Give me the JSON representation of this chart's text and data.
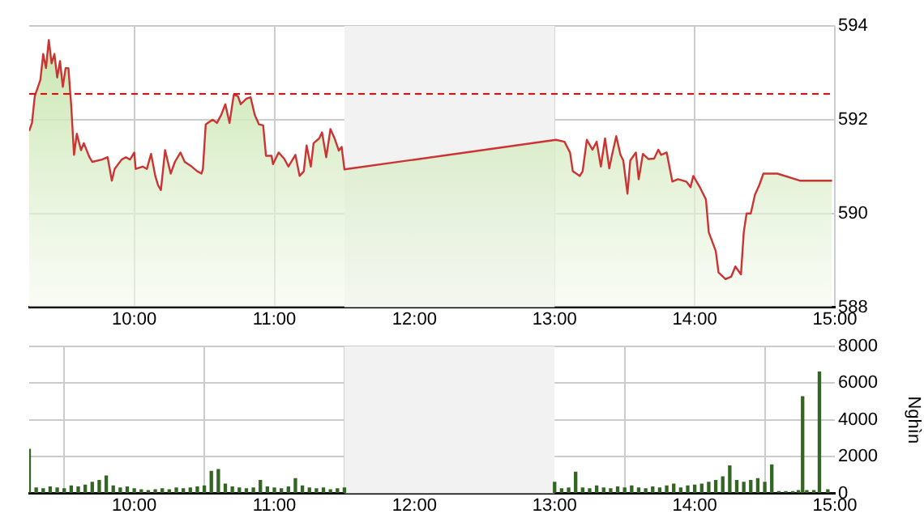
{
  "chart_data": [
    {
      "type": "area",
      "x": [
        9.25,
        9.27,
        9.29,
        9.33,
        9.35,
        9.37,
        9.39,
        9.41,
        9.43,
        9.45,
        9.47,
        9.49,
        9.51,
        9.53,
        9.55,
        9.57,
        9.59,
        9.62,
        9.64,
        9.68,
        9.7,
        9.77,
        9.81,
        9.84,
        9.86,
        9.91,
        9.94,
        9.97,
        10.0,
        10.01,
        10.06,
        10.09,
        10.12,
        10.15,
        10.17,
        10.19,
        10.22,
        10.26,
        10.29,
        10.33,
        10.36,
        10.41,
        10.45,
        10.48,
        10.49,
        10.51,
        10.56,
        10.59,
        10.62,
        10.65,
        10.68,
        10.71,
        10.74,
        10.76,
        10.8,
        10.83,
        10.86,
        10.89,
        10.92,
        10.94,
        10.98,
        10.99,
        11.03,
        11.07,
        11.1,
        11.15,
        11.18,
        11.21,
        11.23,
        11.26,
        11.28,
        11.32,
        11.34,
        11.37,
        11.4,
        11.43,
        11.46,
        11.48,
        11.5,
        13.01,
        13.07,
        13.11,
        13.13,
        13.18,
        13.2,
        13.23,
        13.27,
        13.3,
        13.33,
        13.36,
        13.39,
        13.41,
        13.44,
        13.47,
        13.49,
        13.52,
        13.54,
        13.58,
        13.6,
        13.63,
        13.67,
        13.71,
        13.74,
        13.76,
        13.8,
        13.84,
        13.88,
        13.94,
        13.97,
        13.99,
        14.04,
        14.08,
        14.1,
        14.15,
        14.17,
        14.22,
        14.26,
        14.29,
        14.33,
        14.35,
        14.37,
        14.4,
        14.43,
        14.46,
        14.49,
        14.59,
        14.75,
        14.98
      ],
      "series": [
        {
          "color": "#cc3333",
          "values": [
            591.76,
            591.93,
            592.5,
            592.85,
            593.4,
            593.1,
            593.7,
            593.2,
            593.4,
            592.9,
            593.25,
            592.7,
            593.1,
            593.1,
            592.3,
            591.25,
            591.7,
            591.35,
            591.5,
            591.2,
            591.1,
            591.15,
            591.2,
            590.7,
            590.95,
            591.15,
            591.2,
            591.15,
            591.3,
            590.95,
            591.0,
            590.95,
            591.27,
            590.8,
            590.6,
            590.5,
            591.35,
            590.85,
            591.1,
            591.3,
            591.1,
            591.0,
            590.9,
            590.85,
            590.95,
            591.9,
            592.0,
            591.93,
            592.1,
            592.33,
            591.93,
            592.53,
            592.5,
            592.33,
            592.45,
            592.48,
            592.1,
            591.9,
            591.88,
            591.23,
            591.23,
            591.05,
            591.3,
            591.17,
            591.0,
            591.25,
            590.8,
            590.9,
            591.45,
            591.0,
            591.5,
            591.6,
            591.73,
            591.2,
            591.8,
            591.6,
            591.34,
            591.42,
            590.94,
            591.57,
            591.53,
            591.3,
            590.9,
            590.8,
            590.9,
            591.57,
            591.36,
            591.53,
            591.0,
            591.6,
            590.96,
            591.25,
            591.65,
            591.25,
            591.13,
            590.42,
            591.13,
            591.3,
            590.73,
            591.27,
            591.16,
            591.17,
            591.36,
            591.25,
            591.3,
            590.68,
            590.73,
            590.68,
            590.56,
            590.8,
            590.54,
            590.3,
            589.6,
            589.2,
            588.74,
            588.6,
            588.65,
            588.87,
            588.7,
            589.6,
            590.0,
            590.0,
            590.4,
            590.6,
            590.85,
            590.85,
            590.7,
            590.7
          ]
        }
      ],
      "xlim": [
        9.25,
        15
      ],
      "xticks": [
        {
          "value": 10,
          "label": "10:00"
        },
        {
          "value": 11,
          "label": "11:00"
        },
        {
          "value": 12,
          "label": "12:00"
        },
        {
          "value": 13,
          "label": "13:00"
        },
        {
          "value": 14,
          "label": "14:00"
        },
        {
          "value": 15,
          "label": "15:00"
        }
      ],
      "ylim": [
        588,
        594
      ],
      "yticks": [
        588,
        590,
        592,
        594
      ],
      "grid": true,
      "ref_lines": [
        {
          "axis": "y",
          "value": 592.55,
          "color": "#ff0000",
          "line_style": "dashed"
        }
      ],
      "bands": [
        {
          "axis": "x",
          "from": 11.5,
          "to": 13,
          "color": "#f2f2f2"
        }
      ]
    },
    {
      "type": "bar",
      "ylabel": "Nghìn",
      "color": "#336622",
      "x": [
        9.25,
        9.3,
        9.35,
        9.4,
        9.45,
        9.5,
        9.55,
        9.6,
        9.65,
        9.7,
        9.75,
        9.8,
        9.85,
        9.9,
        9.95,
        10.0,
        10.05,
        10.1,
        10.15,
        10.2,
        10.25,
        10.3,
        10.35,
        10.4,
        10.45,
        10.5,
        10.55,
        10.6,
        10.65,
        10.7,
        10.75,
        10.8,
        10.85,
        10.9,
        10.95,
        11.0,
        11.05,
        11.1,
        11.15,
        11.2,
        11.25,
        11.3,
        11.35,
        11.4,
        11.45,
        11.5,
        13.0,
        13.05,
        13.1,
        13.15,
        13.2,
        13.25,
        13.3,
        13.35,
        13.4,
        13.45,
        13.5,
        13.55,
        13.6,
        13.65,
        13.7,
        13.75,
        13.8,
        13.85,
        13.9,
        13.95,
        14.0,
        14.05,
        14.1,
        14.15,
        14.2,
        14.25,
        14.3,
        14.35,
        14.4,
        14.45,
        14.5,
        14.55,
        14.6,
        14.65,
        14.7,
        14.74,
        14.77,
        14.8,
        14.85,
        14.89,
        14.95
      ],
      "values": [
        2400,
        300,
        250,
        350,
        300,
        250,
        400,
        350,
        450,
        600,
        700,
        950,
        400,
        300,
        350,
        250,
        200,
        150,
        200,
        250,
        200,
        300,
        250,
        300,
        350,
        400,
        1200,
        1300,
        500,
        350,
        300,
        250,
        300,
        700,
        350,
        300,
        250,
        350,
        800,
        400,
        300,
        250,
        300,
        200,
        250,
        300,
        600,
        250,
        300,
        1150,
        300,
        250,
        400,
        300,
        250,
        350,
        300,
        400,
        300,
        250,
        350,
        300,
        400,
        500,
        300,
        400,
        450,
        500,
        600,
        700,
        900,
        1500,
        700,
        600,
        700,
        800,
        600,
        1550,
        100,
        100,
        100,
        150,
        5260,
        150,
        150,
        6600,
        200
      ],
      "xlim": [
        9.25,
        15
      ],
      "xticks": [
        {
          "value": 10,
          "label": "10:00"
        },
        {
          "value": 11,
          "label": "11:00"
        },
        {
          "value": 12,
          "label": "12:00"
        },
        {
          "value": 13,
          "label": "13:00"
        },
        {
          "value": 14,
          "label": "14:00"
        },
        {
          "value": 15,
          "label": "15:00"
        }
      ],
      "ylim": [
        0,
        8000
      ],
      "yticks": [
        0,
        2000,
        4000,
        6000,
        8000
      ],
      "grid": true,
      "bands": [
        {
          "axis": "x",
          "from": 11.5,
          "to": 13,
          "color": "#f2f2f2"
        }
      ]
    }
  ]
}
